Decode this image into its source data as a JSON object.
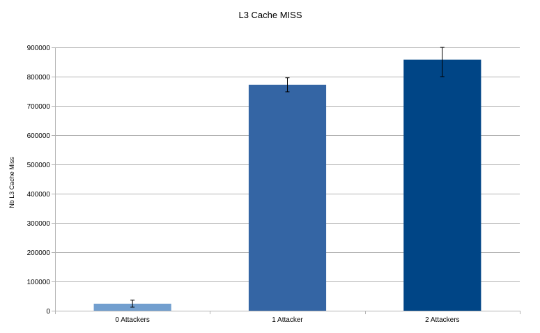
{
  "chart_data": {
    "type": "bar",
    "title": "L3 Cache MISS",
    "xlabel": "",
    "ylabel": "Nb L3 Cache Miss",
    "categories": [
      "0 Attackers",
      "1 Attacker",
      "2 Attackers"
    ],
    "values": [
      24000,
      772000,
      858000
    ],
    "errors": [
      12000,
      24000,
      58000
    ],
    "ylim": [
      0,
      900000
    ],
    "yticks": [
      "0",
      "100000",
      "200000",
      "300000",
      "400000",
      "500000",
      "600000",
      "700000",
      "800000",
      "900000"
    ],
    "grid": true,
    "legend": "none",
    "colors": [
      "#729fcf",
      "#3465a4",
      "#004586"
    ]
  }
}
